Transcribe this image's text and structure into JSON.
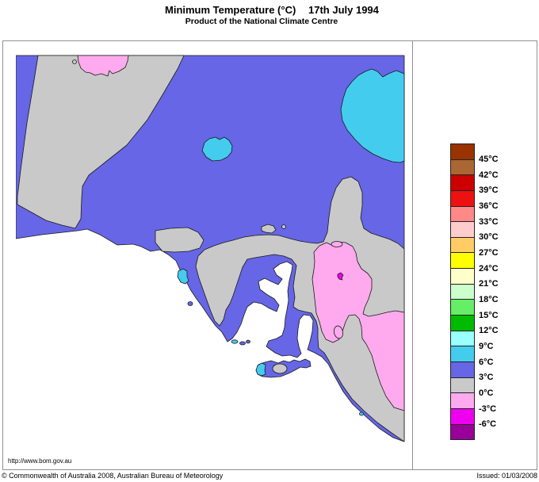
{
  "title": {
    "main": "Minimum Temperature (°C)",
    "date": "17th July 1994",
    "subtitle": "Product of the National Climate Centre"
  },
  "footer": {
    "url": "http://www.bom.gov.au",
    "copyright": "© Commonwealth of Australia 2008, Australian Bureau of Meteorology",
    "issued": "Issued: 01/03/2008"
  },
  "legend": {
    "unit": "°C",
    "cells": [
      "#993300",
      "#AA6633",
      "#CC0000",
      "#EE1111",
      "#FF8888",
      "#FFCCCC",
      "#FFCC66",
      "#FFFF00",
      "#FFFFCC",
      "#CCFFCC",
      "#66EE66",
      "#00BB00",
      "#99FFFF",
      "#44CCEE",
      "#6666E6",
      "#C9C9C9",
      "#FFAAEE",
      "#EE00EE",
      "#990099"
    ],
    "boundaries": [
      "45°C",
      "42°C",
      "39°C",
      "36°C",
      "33°C",
      "30°C",
      "27°C",
      "24°C",
      "21°C",
      "18°C",
      "15°C",
      "12°C",
      "9°C",
      "6°C",
      "3°C",
      "0°C",
      "-3°C",
      "-6°C"
    ]
  },
  "map": {
    "description": "Filled temperature contour map of South Australia; white = sea",
    "colors": {
      "sea": "#FFFFFF",
      "band_3_to_6": "#6666E6",
      "band_0_to_3": "#C9C9C9",
      "band_6_to_9": "#44CCEE",
      "band_minus3_to_0": "#FFAAEE",
      "band_minus6_to_minus3": "#EE00EE",
      "contour_outline": "#1A1A1A",
      "frame": "#909090"
    },
    "visible_bands": [
      "3-6°C blue covers most of the region",
      "0-3°C gray in northwest corner, Eyre Peninsula interior and central-east mass",
      "6-9°C cyan patch in the northeast, small blob in the centre, coastal spots",
      "-3-0°C pink blob on northern edge and large area in the east",
      "-6--3°C magenta speck inside the eastern pink area"
    ]
  }
}
